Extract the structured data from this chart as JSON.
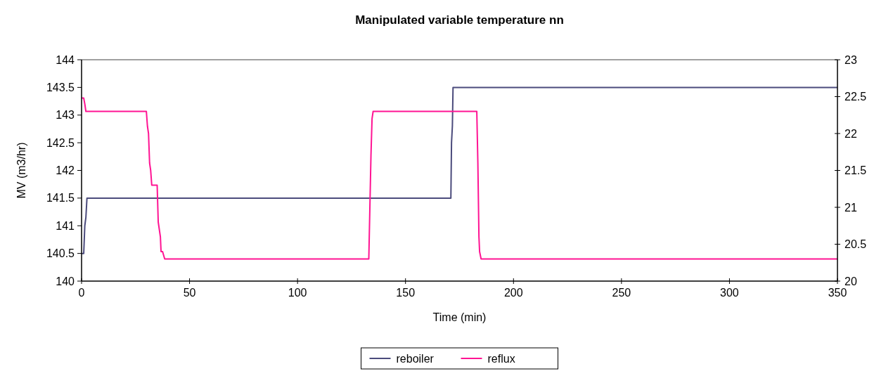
{
  "chart_data": {
    "type": "line",
    "title": "Manipulated variable temperature nn",
    "xlabel": "Time (min)",
    "ylabel": "MV (m3/hr)",
    "xlim": [
      0,
      350
    ],
    "xticks": [
      0,
      50,
      100,
      150,
      200,
      250,
      300,
      350
    ],
    "ylim": [
      140,
      144
    ],
    "yticks": [
      140,
      140.5,
      141,
      141.5,
      142,
      142.5,
      143,
      143.5,
      144
    ],
    "y2lim": [
      20,
      23
    ],
    "y2ticks": [
      20,
      20.5,
      21,
      21.5,
      22,
      22.5,
      23
    ],
    "legend": "bottom",
    "grid": false,
    "series": [
      {
        "name": "reboiler",
        "color": "#4b4b7c",
        "x": [
          0,
          1,
          1.5,
          2,
          2.5,
          171,
          171.3,
          171.7,
          172,
          350
        ],
        "values": [
          140.5,
          140.5,
          141.0,
          141.15,
          141.5,
          141.5,
          142.5,
          142.8,
          143.5,
          143.5
        ]
      },
      {
        "name": "reflux",
        "color": "#ff1493",
        "axis": "y2",
        "x": [
          0,
          1,
          1.5,
          2,
          30,
          30.5,
          31,
          31.5,
          32,
          32.5,
          35,
          35.5,
          36.5,
          36.8,
          37.5,
          38.5,
          133,
          133.5,
          134,
          134.5,
          135,
          183,
          183.5,
          184,
          184.3,
          185,
          350
        ],
        "values": [
          22.48,
          22.48,
          22.4,
          22.3,
          22.3,
          22.1,
          22.0,
          21.6,
          21.5,
          21.3,
          21.3,
          20.8,
          20.6,
          20.4,
          20.4,
          20.3,
          20.3,
          21.0,
          21.7,
          22.2,
          22.3,
          22.3,
          21.6,
          20.6,
          20.4,
          20.3,
          20.3
        ]
      }
    ]
  }
}
